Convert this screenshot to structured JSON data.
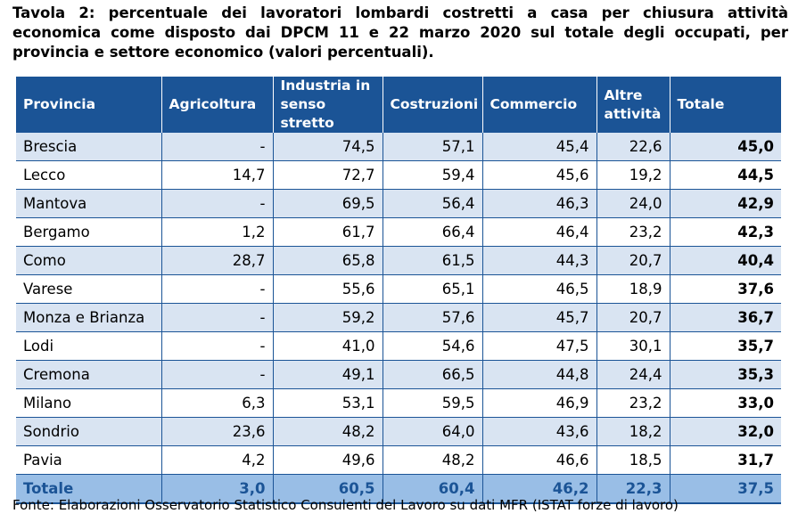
{
  "title": "Tavola 2: percentuale dei lavoratori lombardi costretti a casa per chiusura attività economica come disposto dai DPCM 11 e 22 marzo 2020 sul totale degli occupati, per provincia e settore economico (valori percentuali).",
  "table": {
    "headers": [
      "Provincia",
      "Agricoltura",
      "Industria in senso stretto",
      "Costruzioni",
      "Commercio",
      "Altre attività",
      "Totale"
    ],
    "rows": [
      [
        "Brescia",
        "-",
        "74,5",
        "57,1",
        "45,4",
        "22,6",
        "45,0"
      ],
      [
        "Lecco",
        "14,7",
        "72,7",
        "59,4",
        "45,6",
        "19,2",
        "44,5"
      ],
      [
        "Mantova",
        "-",
        "69,5",
        "56,4",
        "46,3",
        "24,0",
        "42,9"
      ],
      [
        "Bergamo",
        "1,2",
        "61,7",
        "66,4",
        "46,4",
        "23,2",
        "42,3"
      ],
      [
        "Como",
        "28,7",
        "65,8",
        "61,5",
        "44,3",
        "20,7",
        "40,4"
      ],
      [
        "Varese",
        "-",
        "55,6",
        "65,1",
        "46,5",
        "18,9",
        "37,6"
      ],
      [
        "Monza e Brianza",
        "-",
        "59,2",
        "57,6",
        "45,7",
        "20,7",
        "36,7"
      ],
      [
        "Lodi",
        "-",
        "41,0",
        "54,6",
        "47,5",
        "30,1",
        "35,7"
      ],
      [
        "Cremona",
        "-",
        "49,1",
        "66,5",
        "44,8",
        "24,4",
        "35,3"
      ],
      [
        "Milano",
        "6,3",
        "53,1",
        "59,5",
        "46,9",
        "23,2",
        "33,0"
      ],
      [
        "Sondrio",
        "23,6",
        "48,2",
        "64,0",
        "43,6",
        "18,2",
        "32,0"
      ],
      [
        "Pavia",
        "4,2",
        "49,6",
        "48,2",
        "46,6",
        "18,5",
        "31,7"
      ]
    ],
    "total_row": [
      "Totale",
      "3,0",
      "60,5",
      "60,4",
      "46,2",
      "22,3",
      "37,5"
    ]
  },
  "source": "Fonte: Elaborazioni Osservatorio Statistico Consulenti del Lavoro su dati MFR (ISTAT forze di lavoro)",
  "colors": {
    "header_bg": "#1b5496",
    "header_text": "#ffffff",
    "alt_row_bg": "#d9e4f2",
    "total_row_bg": "#99bee6",
    "total_row_text": "#1b5496"
  }
}
